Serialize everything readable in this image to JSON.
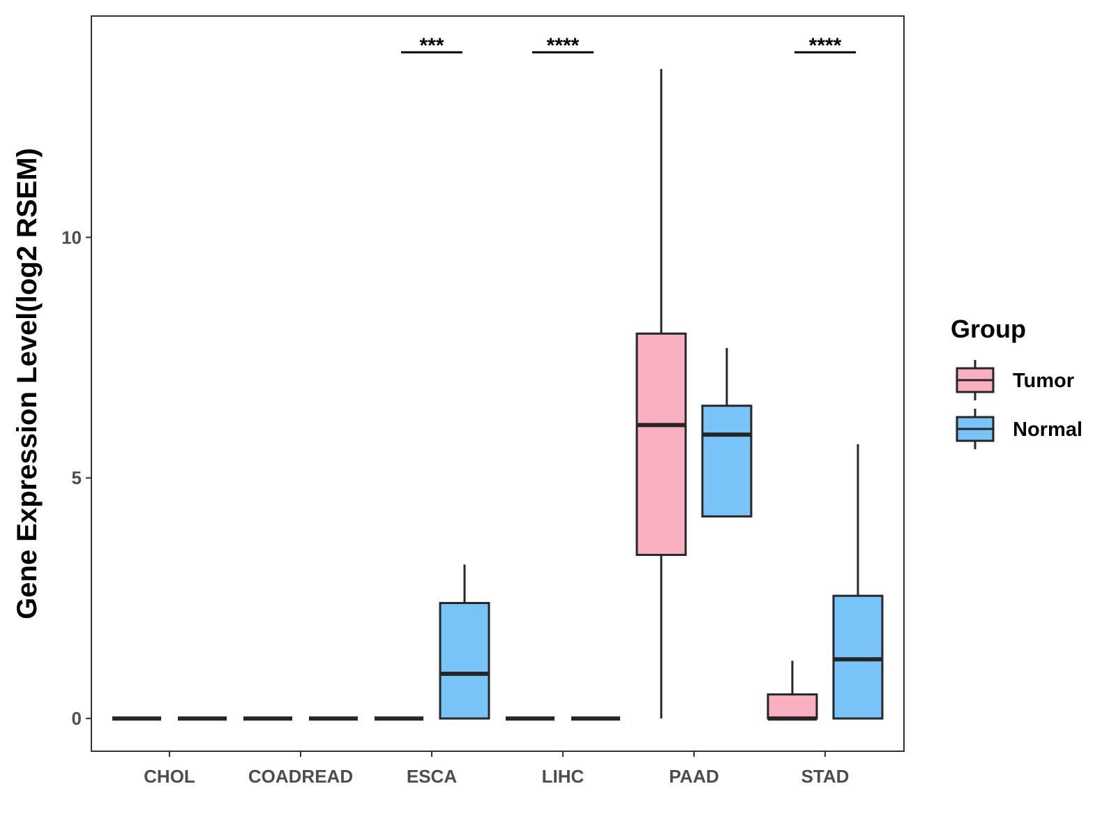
{
  "chart_data": {
    "type": "boxplot",
    "title": "",
    "xlabel": "",
    "ylabel": "Gene Expression Level(log2 RSEM)",
    "ylim": [
      -0.68,
      14.6
    ],
    "yticks": [
      0,
      5,
      10
    ],
    "categories": [
      "CHOL",
      "COADREAD",
      "ESCA",
      "LIHC",
      "PAAD",
      "STAD"
    ],
    "legend": {
      "title": "Group",
      "position": "right",
      "entries": [
        {
          "name": "Tumor",
          "color": "#FBB0C2"
        },
        {
          "name": "Normal",
          "color": "#78C3F8"
        }
      ]
    },
    "series": [
      {
        "name": "Tumor",
        "color": "#FBB0C2",
        "boxes": [
          {
            "category": "CHOL",
            "min": 0,
            "q1": 0,
            "median": 0,
            "q3": 0,
            "max": 0
          },
          {
            "category": "COADREAD",
            "min": 0,
            "q1": 0,
            "median": 0,
            "q3": 0,
            "max": 0
          },
          {
            "category": "ESCA",
            "min": 0,
            "q1": 0,
            "median": 0,
            "q3": 0,
            "max": 0
          },
          {
            "category": "LIHC",
            "min": 0,
            "q1": 0,
            "median": 0,
            "q3": 0,
            "max": 0
          },
          {
            "category": "PAAD",
            "min": 0,
            "q1": 3.4,
            "median": 6.1,
            "q3": 8.0,
            "max": 13.5
          },
          {
            "category": "STAD",
            "min": 0,
            "q1": 0,
            "median": 0,
            "q3": 0.5,
            "max": 1.2
          }
        ]
      },
      {
        "name": "Normal",
        "color": "#78C3F8",
        "boxes": [
          {
            "category": "CHOL",
            "min": 0,
            "q1": 0,
            "median": 0,
            "q3": 0,
            "max": 0
          },
          {
            "category": "COADREAD",
            "min": 0,
            "q1": 0,
            "median": 0,
            "q3": 0,
            "max": 0
          },
          {
            "category": "ESCA",
            "min": 0,
            "q1": 0,
            "median": 0.93,
            "q3": 2.4,
            "max": 3.2
          },
          {
            "category": "LIHC",
            "min": 0,
            "q1": 0,
            "median": 0,
            "q3": 0,
            "max": 0
          },
          {
            "category": "PAAD",
            "min": 4.2,
            "q1": 4.2,
            "median": 5.9,
            "q3": 6.5,
            "max": 7.7
          },
          {
            "category": "STAD",
            "min": 0,
            "q1": 0,
            "median": 1.23,
            "q3": 2.55,
            "max": 5.7
          }
        ]
      }
    ],
    "significance": [
      {
        "category": "ESCA",
        "label": "***"
      },
      {
        "category": "LIHC",
        "label": "****"
      },
      {
        "category": "STAD",
        "label": "****"
      }
    ]
  }
}
